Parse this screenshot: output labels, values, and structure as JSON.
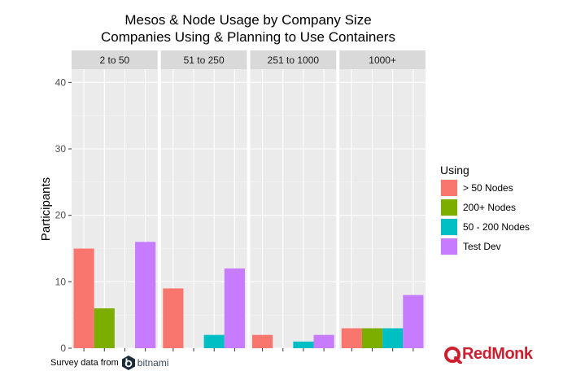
{
  "chart_data": {
    "type": "bar",
    "title_lines": [
      "Mesos & Node Usage by Company Size",
      "Companies Using & Planning to Use Containers"
    ],
    "ylabel": "Participants",
    "xlabel": "",
    "ylim": [
      0,
      42
    ],
    "yticks": [
      0,
      10,
      20,
      30,
      40
    ],
    "panels": [
      "2 to 50",
      "51 to 250",
      "251 to 1000",
      "1000+"
    ],
    "categories": [
      "> 50 Nodes",
      "200+ Nodes",
      "50 - 200 Nodes",
      "Test Dev"
    ],
    "series": [
      {
        "name": "> 50 Nodes",
        "color": "#F8766D",
        "values": [
          15,
          9,
          2,
          3
        ]
      },
      {
        "name": "200+ Nodes",
        "color": "#7CAE00",
        "values": [
          6,
          0,
          0,
          3
        ]
      },
      {
        "name": "50 - 200 Nodes",
        "color": "#00BFC4",
        "values": [
          0,
          2,
          1,
          3
        ]
      },
      {
        "name": "Test Dev",
        "color": "#C77CFF",
        "values": [
          16,
          12,
          2,
          8
        ]
      }
    ],
    "legend": {
      "title": "Using",
      "position": "right"
    },
    "grid": true
  },
  "footer": {
    "source_text": "Survey data from",
    "source_brand": "bitnami"
  },
  "branding": {
    "logo_text": "RedMonk",
    "logo_color": "#cc1f2f"
  }
}
